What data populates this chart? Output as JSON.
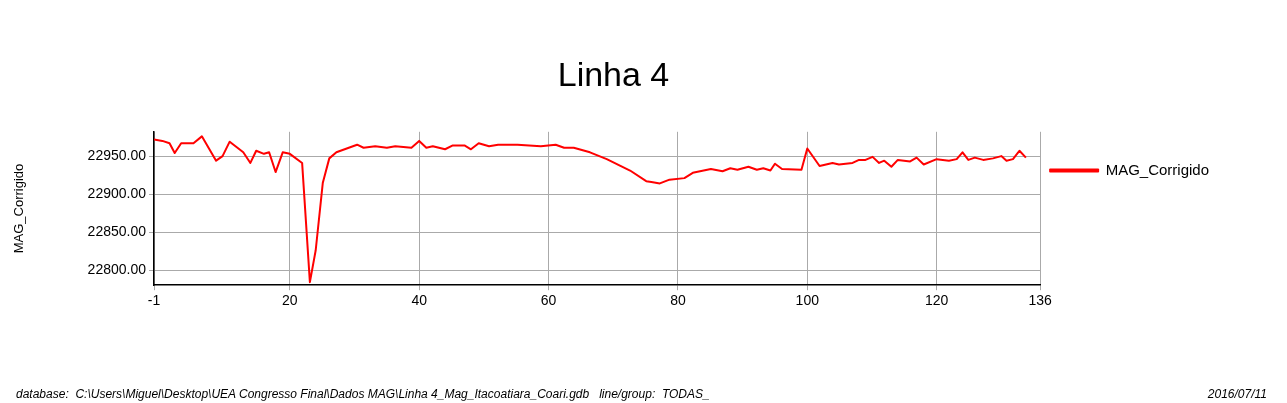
{
  "chart_data": {
    "type": "line",
    "title": "Linha 4",
    "ylabel": "MAG_Corrigido",
    "x": [
      -1,
      0.3,
      1.4,
      2.2,
      3.2,
      5.1,
      6.4,
      8.6,
      9.6,
      10.7,
      12.8,
      13.9,
      14.8,
      16,
      16.8,
      17.8,
      18.9,
      20,
      21.9,
      23.1,
      24,
      25.1,
      26.1,
      27.2,
      28.8,
      30.4,
      31.4,
      33.2,
      35,
      36.3,
      38.8,
      40,
      41.1,
      42.1,
      44,
      45.2,
      47,
      48,
      49.2,
      50.8,
      52.2,
      55.2,
      58.8,
      61.1,
      62.4,
      63.9,
      66.4,
      69,
      72.6,
      75.1,
      75.9,
      77.2,
      78.7,
      81,
      82.3,
      85.1,
      86.9,
      88.1,
      89.2,
      90.9,
      92.2,
      93.2,
      94.3,
      95,
      96.1,
      99.1,
      100,
      101.9,
      103.9,
      104.9,
      107,
      108,
      109,
      110.1,
      111.1,
      111.9,
      113,
      114,
      115.9,
      116.9,
      118,
      120,
      121.9,
      123.1,
      124,
      124.9,
      125.9,
      127.2,
      128.7,
      130,
      130.8,
      131.8,
      132.8,
      133.8
    ],
    "series": [
      {
        "name": "MAG_Corrigido",
        "color": "#ff0000",
        "values": [
          22972,
          22970,
          22967,
          22954,
          22967,
          22967,
          22976,
          22944,
          22950,
          22969,
          22955,
          22941,
          22957,
          22953,
          22955,
          22929,
          22955,
          22953,
          22941,
          22784,
          22826,
          22915,
          22947,
          22955,
          22960,
          22965,
          22961,
          22963,
          22961,
          22963,
          22961,
          22970,
          22961,
          22963,
          22959,
          22964,
          22964,
          22959,
          22967,
          22963,
          22965,
          22965,
          22963,
          22965,
          22961,
          22961,
          22955,
          22946,
          22931,
          22917,
          22916,
          22914,
          22919,
          22921,
          22928,
          22933,
          22930,
          22934,
          22932,
          22936,
          22932,
          22934,
          22931,
          22940,
          22933,
          22932,
          22960,
          22937,
          22941,
          22939,
          22941,
          22945,
          22945,
          22949,
          22941,
          22944,
          22936,
          22945,
          22943,
          22948,
          22939,
          22946,
          22944,
          22946,
          22955,
          22945,
          22948,
          22945,
          22947,
          22950,
          22944,
          22946,
          22957,
          22948
        ]
      }
    ],
    "xlim": [
      -1,
      136
    ],
    "xticks": [
      -1,
      20,
      40,
      60,
      80,
      100,
      120,
      136
    ],
    "ylim": [
      22780,
      22982
    ],
    "yticks": [
      {
        "value": 22800,
        "label": "22800.00"
      },
      {
        "value": 22850,
        "label": "22850.00"
      },
      {
        "value": 22900,
        "label": "22900.00"
      },
      {
        "value": 22950,
        "label": "22950.00"
      }
    ],
    "grid": true,
    "legend": "right",
    "marker": "none",
    "line_style": "solid",
    "annotations": [
      "database:  C:\\Users\\Miguel\\Desktop\\UEA Congresso Final\\Dados MAG\\Linha 4_Mag_Itacoatiara_Coari.gdb   line/group:  TODAS_",
      "2016/07/11"
    ]
  }
}
